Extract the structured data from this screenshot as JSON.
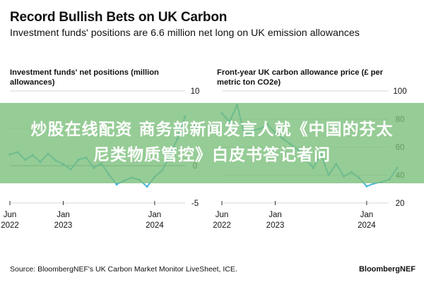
{
  "header": {
    "title": "Record Bullish Bets on UK Carbon",
    "subtitle": "Investment funds' positions are 6.6 million net long on UK emission allowances"
  },
  "chart_data": [
    {
      "type": "line",
      "title": "Investment funds' net positions (million allowances)",
      "x_ticks": [
        "Jun\n2022",
        "Jan\n2023",
        "Jan\n2024"
      ],
      "ylim": [
        -5,
        10
      ],
      "y_ticks": [
        10,
        5,
        0,
        -5
      ],
      "grid": "horizontal",
      "color": "#4ab5dc",
      "x": [
        "2022-06",
        "2022-07",
        "2022-08",
        "2022-09",
        "2022-10",
        "2022-11",
        "2022-12",
        "2023-01",
        "2023-02",
        "2023-03",
        "2023-04",
        "2023-05",
        "2023-06",
        "2023-07",
        "2023-08",
        "2023-09",
        "2023-10",
        "2023-11",
        "2023-12",
        "2024-01",
        "2024-02",
        "2024-03",
        "2024-04",
        "2024-05"
      ],
      "values": [
        1.5,
        1.8,
        0.8,
        1.4,
        0.5,
        1.6,
        0.7,
        0.2,
        -0.5,
        0.8,
        1.1,
        -0.3,
        0.3,
        -1.2,
        -2.5,
        -2.0,
        -1.6,
        -1.9,
        -2.8,
        -1.5,
        -0.6,
        1.4,
        3.6,
        6.6
      ]
    },
    {
      "type": "line",
      "title": "Front-year UK carbon allowance price (£ per metric ton CO2e)",
      "x_ticks": [
        "Jun\n2022",
        "Jan\n2023",
        "Jan\n2024"
      ],
      "ylim": [
        20,
        100
      ],
      "y_ticks": [
        100,
        80,
        60,
        40,
        20
      ],
      "grid": "horizontal",
      "color": "#4ab5dc",
      "x": [
        "2022-06",
        "2022-07",
        "2022-08",
        "2022-09",
        "2022-10",
        "2022-11",
        "2022-12",
        "2023-01",
        "2023-02",
        "2023-03",
        "2023-04",
        "2023-05",
        "2023-06",
        "2023-07",
        "2023-08",
        "2023-09",
        "2023-10",
        "2023-11",
        "2023-12",
        "2024-01",
        "2024-02",
        "2024-03",
        "2024-04",
        "2024-05"
      ],
      "values": [
        84,
        78,
        90,
        68,
        72,
        73,
        76,
        70,
        66,
        62,
        58,
        52,
        45,
        55,
        40,
        48,
        39,
        42,
        38,
        32,
        34,
        35,
        37,
        45
      ]
    }
  ],
  "footer": {
    "source": "Source: BloombergNEF's UK Carbon Market Monitor LiveSheet, ICE.",
    "brand": "BloombergNEF"
  },
  "overlay": {
    "line1": "炒股在线配资 商务部新闻发言人就《中国的芬太",
    "line2": "尼类物质管控》白皮书答记者问"
  }
}
